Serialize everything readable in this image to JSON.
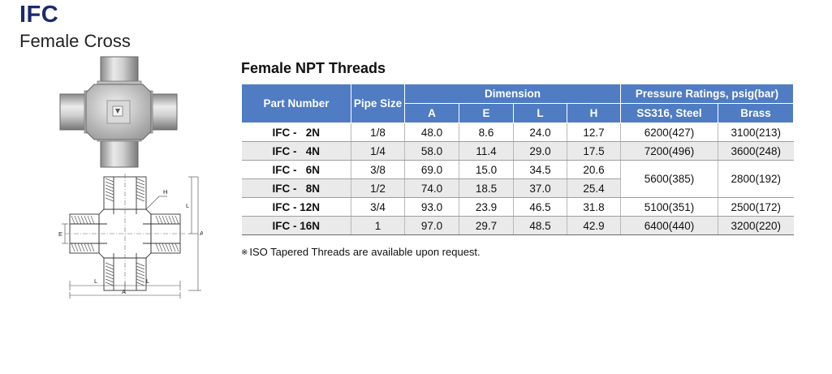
{
  "product": {
    "code": "IFC",
    "name": "Female Cross"
  },
  "section_title": "Female NPT Threads",
  "drawing_labels": {
    "h": "H",
    "l": "L",
    "e": "E",
    "a": "A"
  },
  "table": {
    "headers": {
      "part_number": "Part Number",
      "pipe_size": "Pipe Size",
      "dimension": "Dimension",
      "pressure": "Pressure Ratings, psig(bar)",
      "a": "A",
      "e": "E",
      "l": "L",
      "h": "H",
      "ss316": "SS316, Steel",
      "brass": "Brass"
    },
    "rows": [
      {
        "part": "IFC -   2N",
        "pipe": "1/8",
        "a": "48.0",
        "e": "8.6",
        "l": "24.0",
        "h": "12.7",
        "ss316": "6200(427)",
        "brass": "3100(213)"
      },
      {
        "part": "IFC -   4N",
        "pipe": "1/4",
        "a": "58.0",
        "e": "11.4",
        "l": "29.0",
        "h": "17.5",
        "ss316": "7200(496)",
        "brass": "3600(248)"
      },
      {
        "part": "IFC -   6N",
        "pipe": "3/8",
        "a": "69.0",
        "e": "15.0",
        "l": "34.5",
        "h": "20.6",
        "ss316": "5600(385)",
        "brass": "2800(192)"
      },
      {
        "part": "IFC -   8N",
        "pipe": "1/2",
        "a": "74.0",
        "e": "18.5",
        "l": "37.0",
        "h": "25.4"
      },
      {
        "part": "IFC - 12N",
        "pipe": "3/4",
        "a": "93.0",
        "e": "23.9",
        "l": "46.5",
        "h": "31.8",
        "ss316": "5100(351)",
        "brass": "2500(172)"
      },
      {
        "part": "IFC - 16N",
        "pipe": "1",
        "a": "97.0",
        "e": "29.7",
        "l": "48.5",
        "h": "42.9",
        "ss316": "6400(440)",
        "brass": "3200(220)"
      }
    ]
  },
  "note": {
    "mark": "※",
    "text": "ISO Tapered Threads are available upon request."
  },
  "colors": {
    "header_bg": "#4f7cc2",
    "alt_row": "#eaeaea",
    "title": "#1a2a6c"
  }
}
